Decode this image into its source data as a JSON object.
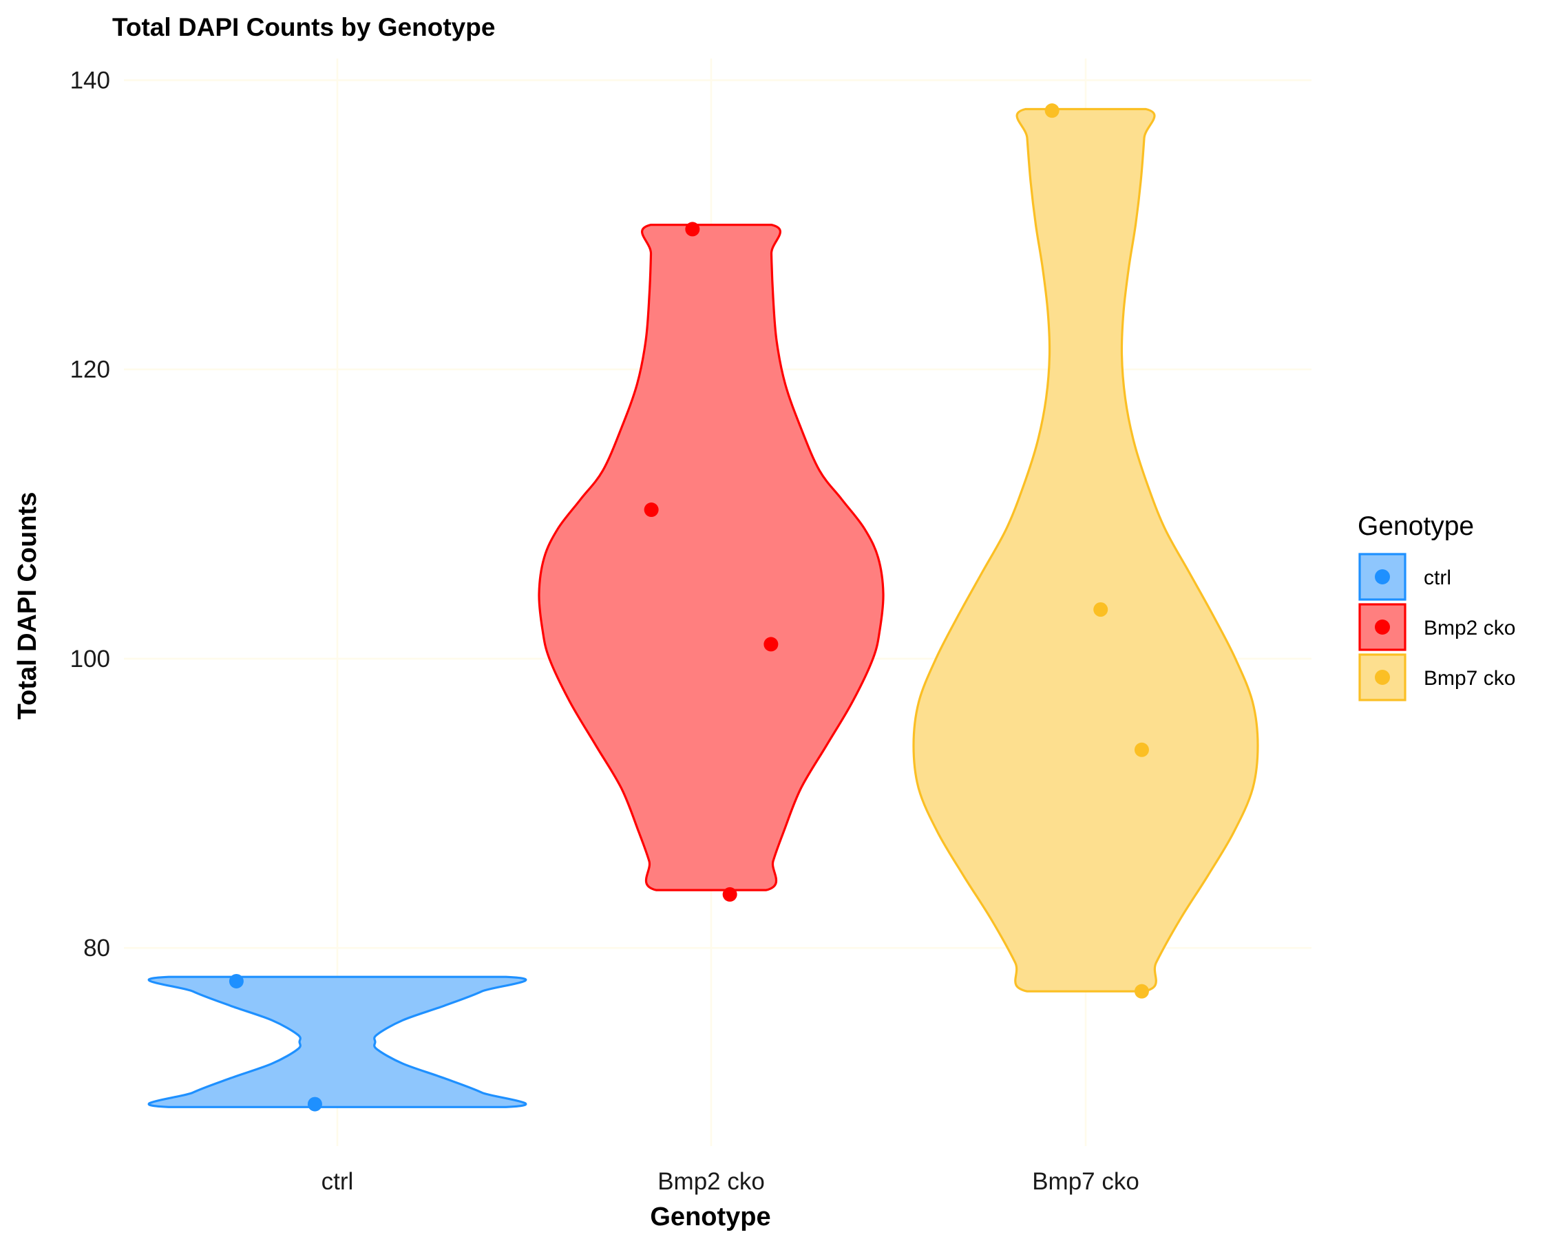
{
  "chart_data": {
    "type": "violin",
    "title": "Total DAPI Counts by Genotype",
    "xlabel": "Genotype",
    "ylabel": "Total DAPI Counts",
    "categories": [
      "ctrl",
      "Bmp2 cko",
      "Bmp7 cko"
    ],
    "ylim": [
      66.3,
      141.5
    ],
    "yticks": [
      80,
      100,
      120,
      140
    ],
    "grid": true,
    "legend": {
      "title": "Genotype",
      "position": "right",
      "entries": [
        "ctrl",
        "Bmp2 cko",
        "Bmp7 cko"
      ]
    },
    "series": [
      {
        "name": "ctrl",
        "color": "#1e90ff",
        "fill": "#8ec6fd",
        "points": [
          {
            "jitter": -0.27,
            "y": 77.7
          },
          {
            "jitter": -0.06,
            "y": 69.2
          }
        ],
        "density": [
          {
            "y": 69.0,
            "w": 0.98
          },
          {
            "y": 70.0,
            "w": 0.84
          },
          {
            "y": 71.0,
            "w": 0.62
          },
          {
            "y": 72.0,
            "w": 0.38
          },
          {
            "y": 73.0,
            "w": 0.23
          },
          {
            "y": 73.5,
            "w": 0.22
          },
          {
            "y": 74.0,
            "w": 0.23
          },
          {
            "y": 75.0,
            "w": 0.38
          },
          {
            "y": 76.0,
            "w": 0.62
          },
          {
            "y": 77.0,
            "w": 0.84
          },
          {
            "y": 78.0,
            "w": 0.98
          }
        ]
      },
      {
        "name": "Bmp2 cko",
        "color": "#ff0000",
        "fill": "#ff7f7f",
        "points": [
          {
            "jitter": -0.05,
            "y": 129.7
          },
          {
            "jitter": -0.16,
            "y": 110.3
          },
          {
            "jitter": 0.16,
            "y": 101.0
          },
          {
            "jitter": 0.05,
            "y": 83.7
          }
        ],
        "density": [
          {
            "y": 84.0,
            "w": 0.32
          },
          {
            "y": 86.0,
            "w": 0.36
          },
          {
            "y": 88.0,
            "w": 0.42
          },
          {
            "y": 91.0,
            "w": 0.52
          },
          {
            "y": 94.0,
            "w": 0.67
          },
          {
            "y": 97.0,
            "w": 0.82
          },
          {
            "y": 100.0,
            "w": 0.94
          },
          {
            "y": 102.0,
            "w": 0.98
          },
          {
            "y": 104.5,
            "w": 1.0
          },
          {
            "y": 107.0,
            "w": 0.97
          },
          {
            "y": 109.0,
            "w": 0.89
          },
          {
            "y": 111.0,
            "w": 0.76
          },
          {
            "y": 113.0,
            "w": 0.63
          },
          {
            "y": 116.0,
            "w": 0.52
          },
          {
            "y": 119.0,
            "w": 0.43
          },
          {
            "y": 122.0,
            "w": 0.38
          },
          {
            "y": 125.0,
            "w": 0.36
          },
          {
            "y": 128.0,
            "w": 0.35
          },
          {
            "y": 130.0,
            "w": 0.35
          }
        ]
      },
      {
        "name": "Bmp7 cko",
        "color": "#fbbf24",
        "fill": "#fddf8f",
        "points": [
          {
            "jitter": -0.09,
            "y": 137.9
          },
          {
            "jitter": 0.04,
            "y": 103.4
          },
          {
            "jitter": 0.15,
            "y": 93.7
          },
          {
            "jitter": 0.15,
            "y": 77.0
          }
        ],
        "density": [
          {
            "y": 77.0,
            "w": 0.34
          },
          {
            "y": 79.0,
            "w": 0.41
          },
          {
            "y": 82.0,
            "w": 0.55
          },
          {
            "y": 85.0,
            "w": 0.71
          },
          {
            "y": 88.0,
            "w": 0.86
          },
          {
            "y": 91.0,
            "w": 0.97
          },
          {
            "y": 94.0,
            "w": 1.0
          },
          {
            "y": 97.0,
            "w": 0.97
          },
          {
            "y": 100.0,
            "w": 0.87
          },
          {
            "y": 103.0,
            "w": 0.74
          },
          {
            "y": 106.0,
            "w": 0.6
          },
          {
            "y": 109.0,
            "w": 0.46
          },
          {
            "y": 112.0,
            "w": 0.36
          },
          {
            "y": 115.0,
            "w": 0.28
          },
          {
            "y": 118.0,
            "w": 0.23
          },
          {
            "y": 121.0,
            "w": 0.21
          },
          {
            "y": 124.0,
            "w": 0.22
          },
          {
            "y": 127.0,
            "w": 0.25
          },
          {
            "y": 130.0,
            "w": 0.29
          },
          {
            "y": 133.0,
            "w": 0.32
          },
          {
            "y": 136.0,
            "w": 0.34
          },
          {
            "y": 138.0,
            "w": 0.35
          }
        ]
      }
    ]
  }
}
